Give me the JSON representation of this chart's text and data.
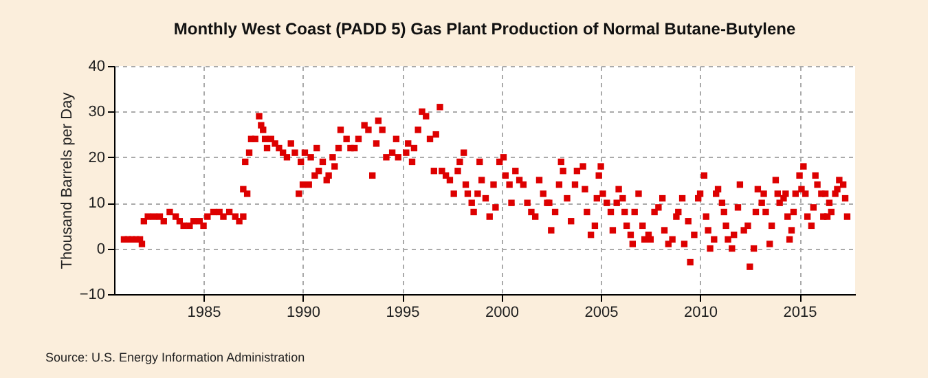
{
  "chart_data": {
    "type": "scatter",
    "title": "Monthly West Coast (PADD 5) Gas Plant Production of Normal Butane-Butylene",
    "ylabel": "Thousand Barrels per Day",
    "annotations": [
      "Source: U.S. Energy Information Administration"
    ],
    "xlim": [
      1980.5,
      2017.8
    ],
    "xticks": [
      1985,
      1990,
      1995,
      2000,
      2005,
      2010,
      2015
    ],
    "ylim": [
      -10,
      40
    ],
    "yticks": [
      -10,
      0,
      10,
      20,
      30,
      40
    ],
    "grid": true,
    "marker": "square",
    "series": [
      {
        "color": "#dd0000",
        "x": [
          1981.0,
          1981.2,
          1981.4,
          1981.6,
          1981.8,
          1981.9,
          1982.0,
          1982.2,
          1982.5,
          1982.8,
          1983.0,
          1983.3,
          1983.6,
          1983.8,
          1984.0,
          1984.3,
          1984.5,
          1984.8,
          1985.0,
          1985.2,
          1985.5,
          1985.8,
          1986.0,
          1986.3,
          1986.6,
          1986.8,
          1987.0,
          1987.0,
          1987.1,
          1987.2,
          1987.3,
          1987.4,
          1987.6,
          1987.8,
          1987.9,
          1988.0,
          1988.1,
          1988.2,
          1988.4,
          1988.6,
          1988.8,
          1989.0,
          1989.2,
          1989.4,
          1989.6,
          1989.8,
          1989.9,
          1990.0,
          1990.1,
          1990.3,
          1990.4,
          1990.6,
          1990.7,
          1990.8,
          1991.0,
          1991.2,
          1991.3,
          1991.5,
          1991.6,
          1991.8,
          1991.9,
          1992.2,
          1992.4,
          1992.6,
          1992.8,
          1993.1,
          1993.3,
          1993.5,
          1993.7,
          1993.8,
          1994.0,
          1994.2,
          1994.5,
          1994.7,
          1994.8,
          1995.2,
          1995.3,
          1995.5,
          1995.6,
          1995.8,
          1996.0,
          1996.2,
          1996.4,
          1996.6,
          1996.7,
          1996.9,
          1997.0,
          1997.2,
          1997.4,
          1997.6,
          1997.8,
          1997.9,
          1998.1,
          1998.2,
          1998.3,
          1998.5,
          1998.6,
          1998.8,
          1998.9,
          1999.0,
          1999.2,
          1999.4,
          1999.6,
          1999.7,
          1999.9,
          2000.1,
          2000.2,
          2000.4,
          2000.5,
          2000.7,
          2000.9,
          2001.1,
          2001.3,
          2001.5,
          2001.7,
          2001.9,
          2002.1,
          2002.3,
          2002.4,
          2002.5,
          2002.7,
          2002.9,
          2003.0,
          2003.1,
          2003.3,
          2003.5,
          2003.7,
          2003.8,
          2004.1,
          2004.2,
          2004.3,
          2004.5,
          2004.7,
          2004.8,
          2004.9,
          2005.0,
          2005.1,
          2005.3,
          2005.5,
          2005.6,
          2005.8,
          2005.9,
          2006.1,
          2006.2,
          2006.3,
          2006.5,
          2006.6,
          2006.7,
          2006.9,
          2007.1,
          2007.2,
          2007.4,
          2007.5,
          2007.7,
          2007.9,
          2008.1,
          2008.2,
          2008.4,
          2008.6,
          2008.8,
          2008.9,
          2009.1,
          2009.2,
          2009.4,
          2009.5,
          2009.7,
          2009.9,
          2010.0,
          2010.2,
          2010.3,
          2010.4,
          2010.5,
          2010.7,
          2010.8,
          2010.9,
          2011.1,
          2011.2,
          2011.3,
          2011.4,
          2011.6,
          2011.7,
          2011.9,
          2012.0,
          2012.2,
          2012.4,
          2012.5,
          2012.7,
          2012.8,
          2012.9,
          2013.1,
          2013.2,
          2013.3,
          2013.5,
          2013.6,
          2013.8,
          2013.9,
          2014.0,
          2014.2,
          2014.3,
          2014.4,
          2014.5,
          2014.6,
          2014.7,
          2014.8,
          2015.0,
          2015.1,
          2015.2,
          2015.3,
          2015.4,
          2015.6,
          2015.7,
          2015.8,
          2015.9,
          2016.1,
          2016.2,
          2016.3,
          2016.4,
          2016.5,
          2016.6,
          2016.8,
          2016.9,
          2017.0,
          2017.2,
          2017.3,
          2017.4
        ],
        "values": [
          2,
          2,
          2,
          2,
          2,
          1,
          6,
          7,
          7,
          7,
          6,
          8,
          7,
          6,
          5,
          5,
          6,
          6,
          5,
          7,
          8,
          8,
          7,
          8,
          7,
          6,
          7,
          13,
          19,
          12,
          21,
          24,
          24,
          29,
          27,
          26,
          24,
          22,
          24,
          23,
          22,
          21,
          20,
          23,
          21,
          12,
          19,
          14,
          21,
          14,
          20,
          16,
          22,
          17,
          19,
          15,
          16,
          20,
          18,
          22,
          26,
          24,
          22,
          22,
          24,
          27,
          26,
          16,
          23,
          28,
          26,
          20,
          21,
          24,
          20,
          21,
          23,
          19,
          22,
          26,
          30,
          29,
          24,
          17,
          25,
          31,
          17,
          16,
          15,
          12,
          17,
          19,
          21,
          14,
          12,
          10,
          8,
          12,
          19,
          15,
          11,
          7,
          14,
          9,
          19,
          20,
          16,
          14,
          10,
          17,
          15,
          14,
          10,
          8,
          7,
          15,
          12,
          10,
          10,
          4,
          8,
          14,
          19,
          17,
          11,
          6,
          14,
          17,
          18,
          13,
          8,
          3,
          5,
          11,
          16,
          18,
          12,
          10,
          8,
          4,
          10,
          13,
          11,
          8,
          5,
          3,
          1,
          8,
          12,
          5,
          2,
          3,
          2,
          8,
          9,
          11,
          4,
          1,
          2,
          7,
          8,
          11,
          1,
          6,
          -3,
          3,
          11,
          12,
          16,
          7,
          4,
          0,
          2,
          12,
          13,
          10,
          8,
          5,
          2,
          0,
          3,
          9,
          14,
          4,
          5,
          -4,
          0,
          8,
          13,
          10,
          12,
          8,
          1,
          5,
          15,
          12,
          10,
          11,
          12,
          7,
          2,
          4,
          8,
          12,
          16,
          13,
          18,
          12,
          7,
          5,
          9,
          16,
          14,
          12,
          7,
          12,
          7,
          10,
          8,
          12,
          13,
          15,
          14,
          11,
          7
        ]
      }
    ]
  }
}
